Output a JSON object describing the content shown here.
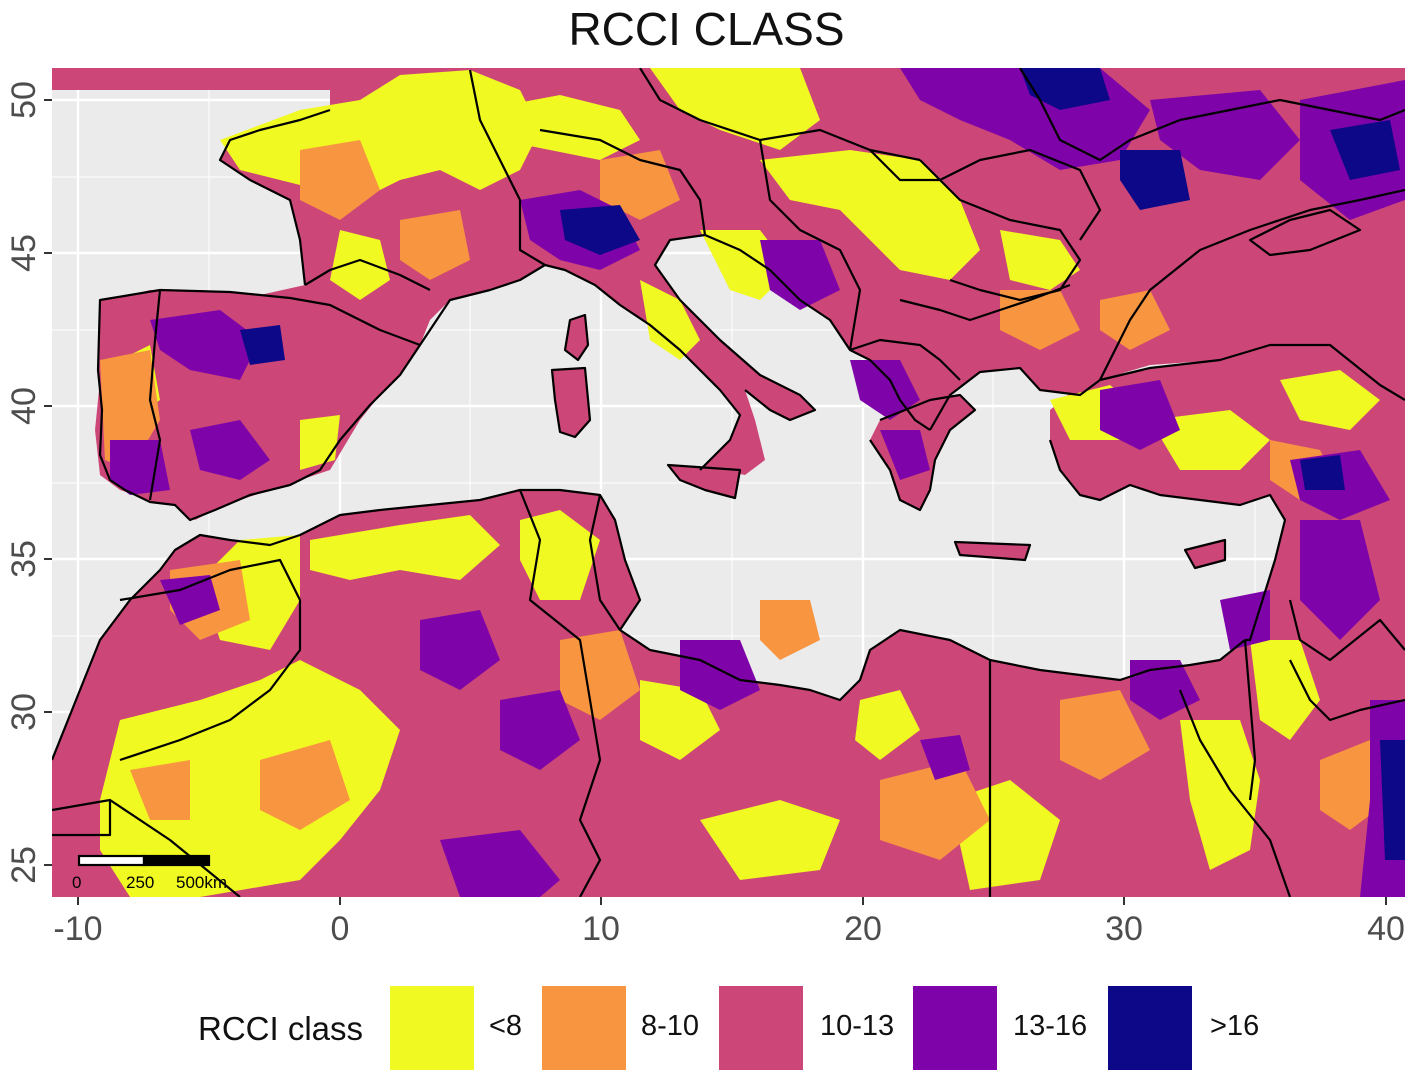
{
  "title": "RCCI CLASS",
  "axes": {
    "x_ticks": [
      "-10",
      "0",
      "10",
      "20",
      "30",
      "40"
    ],
    "y_ticks": [
      "25",
      "30",
      "35",
      "40",
      "45",
      "50"
    ]
  },
  "scale_bar": {
    "labels": [
      "0",
      "250",
      "500km"
    ]
  },
  "legend": {
    "title": "RCCI class",
    "items": [
      {
        "label": "<8",
        "color": "#F0F921"
      },
      {
        "label": "8-10",
        "color": "#F89540"
      },
      {
        "label": "10-13",
        "color": "#CC4778"
      },
      {
        "label": "13-16",
        "color": "#7E03A8"
      },
      {
        "label": ">16",
        "color": "#0D0887"
      }
    ]
  },
  "colors": {
    "sea": "#EBEBEB",
    "grid": "#FFFFFF",
    "border": "#000000"
  }
}
